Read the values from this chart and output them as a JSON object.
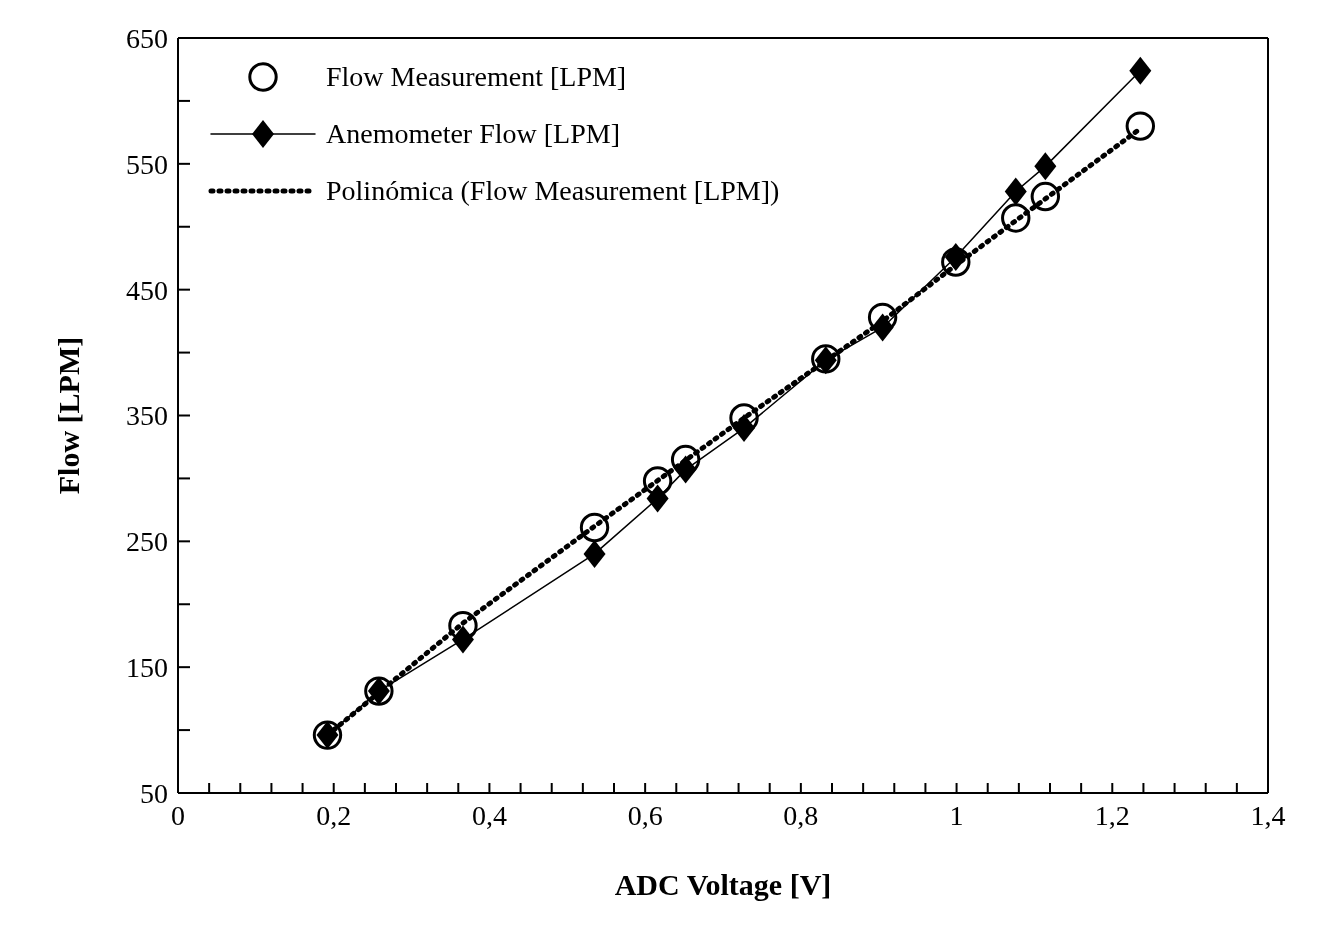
{
  "chart_data": {
    "type": "line",
    "xlabel": "ADC Voltage [V]",
    "ylabel": "Flow [LPM]",
    "xlim": [
      0,
      1.4
    ],
    "xticks": [
      0,
      {
        "value": 0.04,
        "label": null
      },
      {
        "value": 0.08,
        "label": null
      },
      {
        "value": 0.12,
        "label": null
      },
      {
        "value": 0.16,
        "label": null
      },
      {
        "value": 0.2,
        "label": "0,2"
      },
      {
        "value": 0.24,
        "label": null
      },
      {
        "value": 0.28,
        "label": null
      },
      {
        "value": 0.32,
        "label": null
      },
      {
        "value": 0.36,
        "label": null
      },
      {
        "value": 0.4,
        "label": "0,4"
      },
      {
        "value": 0.44,
        "label": null
      },
      {
        "value": 0.48,
        "label": null
      },
      {
        "value": 0.52,
        "label": null
      },
      {
        "value": 0.56,
        "label": null
      },
      {
        "value": 0.6,
        "label": "0,6"
      },
      {
        "value": 0.64,
        "label": null
      },
      {
        "value": 0.68,
        "label": null
      },
      {
        "value": 0.72,
        "label": null
      },
      {
        "value": 0.76,
        "label": null
      },
      {
        "value": 0.8,
        "label": "0,8"
      },
      {
        "value": 0.84,
        "label": null
      },
      {
        "value": 0.88,
        "label": null
      },
      {
        "value": 0.92,
        "label": null
      },
      {
        "value": 0.96,
        "label": null
      },
      1,
      {
        "value": 1.04,
        "label": null
      },
      {
        "value": 1.08,
        "label": null
      },
      {
        "value": 1.12,
        "label": null
      },
      {
        "value": 1.16,
        "label": null
      },
      {
        "value": 1.2,
        "label": "1,2"
      },
      {
        "value": 1.24,
        "label": null
      },
      {
        "value": 1.28,
        "label": null
      },
      {
        "value": 1.32,
        "label": null
      },
      {
        "value": 1.36,
        "label": null
      },
      {
        "value": 1.4,
        "label": "1,4"
      }
    ],
    "ylim": [
      50,
      650
    ],
    "yticks": [
      50,
      {
        "value": 100,
        "label": null
      },
      150,
      {
        "value": 200,
        "label": null
      },
      250,
      {
        "value": 300,
        "label": null
      },
      350,
      {
        "value": 400,
        "label": null
      },
      450,
      {
        "value": 500,
        "label": null
      },
      550,
      {
        "value": 600,
        "label": null
      },
      650
    ],
    "grid": false,
    "legend": "top left",
    "series": [
      {
        "name": "Flow Measurement [LPM]",
        "type": "scatter",
        "marker": "circle",
        "color": "#000000",
        "x": [
          0.192,
          0.258,
          0.366,
          0.535,
          0.616,
          0.652,
          0.727,
          0.832,
          0.905,
          0.999,
          1.076,
          1.114,
          1.236
        ],
        "values": [
          96,
          131,
          183,
          261,
          298,
          315,
          348,
          395,
          428,
          472,
          507,
          524,
          580
        ]
      },
      {
        "name": "Anemometer Flow [LPM]",
        "marker": "diamond",
        "line_style": "solid",
        "color": "#000000",
        "x": [
          0.192,
          0.258,
          0.366,
          0.535,
          0.616,
          0.652,
          0.727,
          0.832,
          0.905,
          0.999,
          1.076,
          1.114,
          1.236
        ],
        "values": [
          96,
          131,
          172,
          240,
          284,
          307,
          340,
          394,
          420,
          476,
          528,
          548,
          624
        ]
      },
      {
        "name": "Polinómica (Flow Measurement [LPM])",
        "marker": "none",
        "line_style": "dotted",
        "color": "#000000",
        "x": [
          0.192,
          0.366,
          0.535,
          0.727,
          0.905,
          1.0,
          1.236
        ],
        "values": [
          96,
          185,
          262,
          348,
          425,
          470,
          578
        ]
      }
    ]
  }
}
